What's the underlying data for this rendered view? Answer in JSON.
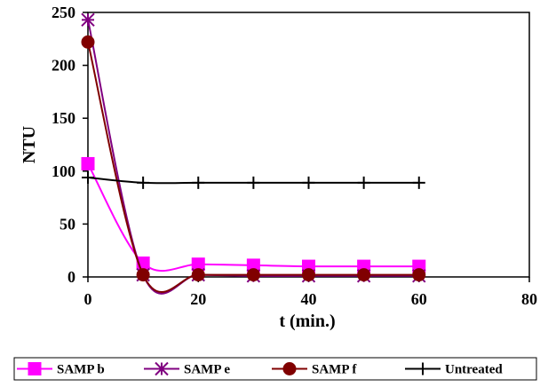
{
  "chart_data": {
    "type": "line",
    "title": "",
    "xlabel": "t (min.)",
    "ylabel": "NTU",
    "xlim": [
      0,
      80
    ],
    "ylim": [
      0,
      250
    ],
    "xticks": [
      0,
      20,
      40,
      60,
      80
    ],
    "yticks": [
      0,
      50,
      100,
      150,
      200,
      250
    ],
    "grid": false,
    "legend_position": "bottom",
    "series": [
      {
        "name": "SAMP b",
        "color": "#ff00ff",
        "marker": "square",
        "smooth": true,
        "x": [
          0,
          10,
          20,
          30,
          40,
          50,
          60
        ],
        "y": [
          107,
          13,
          12,
          11,
          10,
          10,
          10
        ]
      },
      {
        "name": "SAMP e",
        "color": "#800080",
        "marker": "star",
        "smooth": true,
        "x": [
          0,
          10,
          20,
          30,
          40,
          50,
          60
        ],
        "y": [
          243,
          2,
          2,
          1,
          1,
          1,
          1
        ]
      },
      {
        "name": "SAMP f",
        "color": "#800000",
        "marker": "circle",
        "smooth": true,
        "x": [
          0,
          10,
          20,
          30,
          40,
          50,
          60
        ],
        "y": [
          222,
          2,
          2,
          2,
          2,
          2,
          2
        ]
      },
      {
        "name": "Untreated",
        "color": "#000000",
        "marker": "plus",
        "smooth": true,
        "x": [
          0,
          10,
          20,
          30,
          40,
          50,
          60
        ],
        "y": [
          94,
          89,
          89,
          89,
          89,
          89,
          89
        ]
      }
    ]
  }
}
